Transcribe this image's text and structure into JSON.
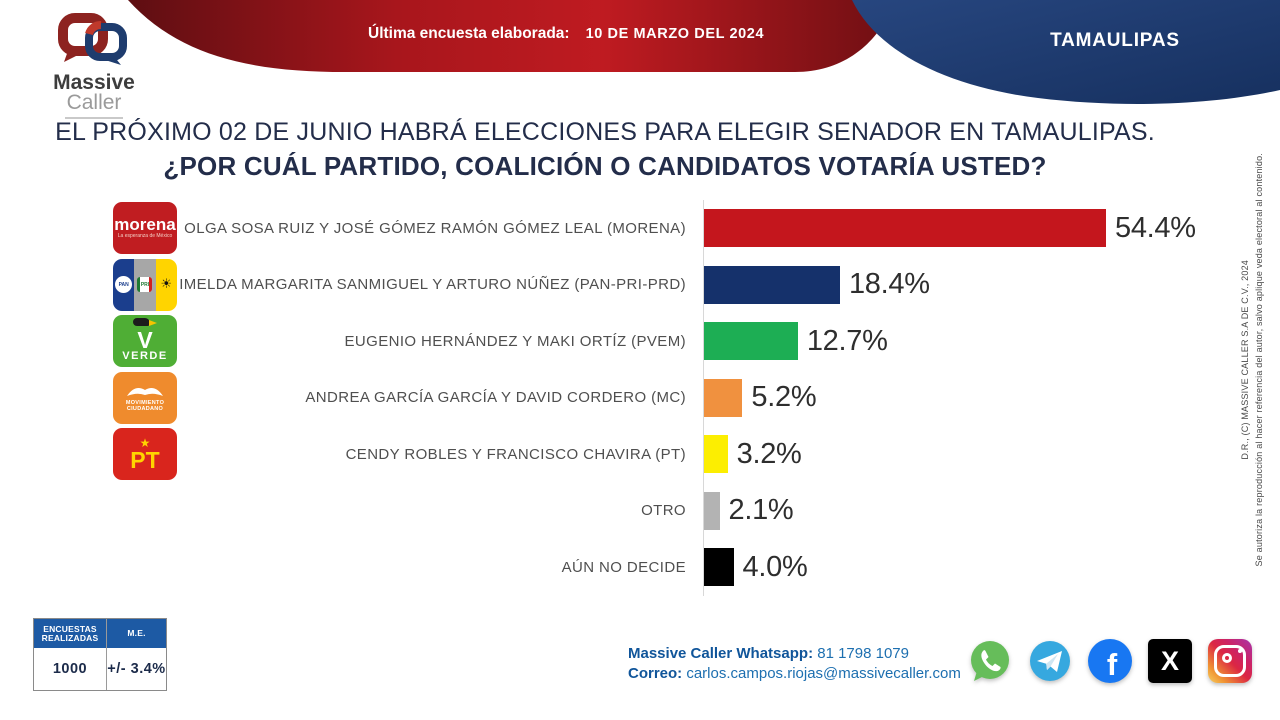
{
  "header": {
    "banner_label": "Última encuesta elaborada:",
    "banner_date": "10 DE MARZO DEL 2024",
    "state": "TAMAULIPAS",
    "brand_line1": "Massive",
    "brand_line2": "Caller",
    "red_color": "#a8161c",
    "blue_color": "#1c3768"
  },
  "title": {
    "line1": "EL PRÓXIMO 02 DE JUNIO HABRÁ ELECCIONES PARA ELEGIR SENADOR EN TAMAULIPAS.",
    "line2": "¿POR CUÁL PARTIDO, COALICIÓN O CANDIDATOS VOTARÍA USTED?"
  },
  "chart_data": {
    "type": "bar",
    "orientation": "horizontal",
    "title": "¿POR CUÁL PARTIDO, COALICIÓN O CANDIDATOS VOTARÍA USTED?",
    "categories": [
      "OLGA SOSA RUIZ Y JOSÉ GÓMEZ RAMÓN GÓMEZ LEAL (MORENA)",
      "IMELDA MARGARITA SANMIGUEL Y ARTURO NÚÑEZ (PAN-PRI-PRD)",
      "EUGENIO HERNÁNDEZ  Y MAKI ORTÍZ (PVEM)",
      "ANDREA GARCÍA GARCÍA  Y DAVID CORDERO (MC)",
      "CENDY ROBLES Y FRANCISCO CHAVIRA (PT)",
      "OTRO",
      "AÚN NO DECIDE"
    ],
    "values": [
      54.4,
      18.4,
      12.7,
      5.2,
      3.2,
      2.1,
      4.0
    ],
    "value_labels": [
      "54.4%",
      "18.4%",
      "12.7%",
      "5.2%",
      "3.2%",
      "2.1%",
      "4.0%"
    ],
    "colors": [
      "#c4161d",
      "#15316b",
      "#1dae54",
      "#f0913f",
      "#fcee01",
      "#b3b3b3",
      "#000000"
    ],
    "unit": "%",
    "xlim": [
      0,
      60
    ],
    "grid": false,
    "legend": false
  },
  "party_logos": {
    "morena": {
      "word": "morena",
      "tagline": "La esperanza de México"
    },
    "coalition": {
      "pan": "PAN",
      "pri": "PRI",
      "prd": "☀"
    },
    "verde": {
      "v": "V",
      "word": "VERDE"
    },
    "mc": {
      "line1": "MOVIMIENTO",
      "line2": "CIUDADANO"
    },
    "pt": {
      "star": "★",
      "word": "PT"
    }
  },
  "stats_table": {
    "header_col1": "ENCUESTAS REALIZADAS",
    "header_col2": "M.E.",
    "value_col1": "1000",
    "value_col2": "+/- 3.4%"
  },
  "contact": {
    "whatsapp_label": "Massive Caller Whatsapp:",
    "whatsapp_number": "81 1798 1079",
    "email_label": "Correo:",
    "email": "carlos.campos.riojas@massivecaller.com"
  },
  "social_icons": [
    "whatsapp",
    "telegram",
    "facebook",
    "x",
    "instagram"
  ],
  "copyright": {
    "inner": "D.R., (C) MASSIVE CALLER S.A DE C.V., 2024",
    "outer": "Se autoriza la reproducción al hacer referencia del autor, salvo aplique veda electoral al contenido."
  }
}
